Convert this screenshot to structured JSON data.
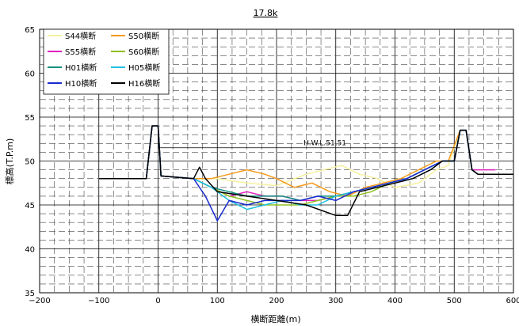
{
  "chart_data": {
    "type": "line",
    "title": "17.8k",
    "xlabel": "横断距離(m)",
    "ylabel": "標高(T.P.m)",
    "xlim": [
      -200,
      600
    ],
    "ylim": [
      35,
      65
    ],
    "x_ticks": [
      -200,
      -100,
      0,
      100,
      200,
      300,
      400,
      500,
      600
    ],
    "y_ticks": [
      35,
      40,
      45,
      50,
      55,
      60,
      65
    ],
    "x_tick_labels": [
      "−200",
      "−100",
      "0",
      "100",
      "200",
      "300",
      "400",
      "500",
      "600"
    ],
    "y_tick_labels": [
      "35",
      "40",
      "45",
      "50",
      "55",
      "60",
      "65"
    ],
    "grid": true,
    "legend_position": "top-left",
    "annotation": {
      "text": "H.W.L.51.51",
      "y": 51.51,
      "x_from": 0,
      "x_to": 510
    },
    "series": [
      {
        "name": "S44横断",
        "color": "#f5f0a0",
        "x": [
          -100,
          -20,
          -10,
          -5,
          0,
          5,
          60,
          100,
          150,
          200,
          250,
          280,
          310,
          340,
          370,
          400,
          440,
          470,
          490,
          510,
          520,
          530,
          540,
          560,
          600
        ],
        "y": [
          48,
          48,
          54,
          54,
          54,
          48.3,
          48,
          48,
          47.5,
          47.2,
          48.5,
          49,
          49.5,
          48.5,
          48,
          47,
          47.5,
          49,
          49.5,
          53.5,
          53.5,
          49,
          48.5,
          48.5,
          48.5
        ]
      },
      {
        "name": "S50横断",
        "color": "#f59a1a",
        "x": [
          -100,
          -20,
          -10,
          -5,
          0,
          5,
          60,
          90,
          120,
          150,
          180,
          200,
          230,
          260,
          290,
          320,
          350,
          380,
          410,
          440,
          470,
          490,
          510,
          520,
          530,
          540,
          560,
          600
        ],
        "y": [
          48,
          48,
          54,
          54,
          54,
          48.3,
          48,
          48,
          48.5,
          49,
          48.5,
          48,
          47,
          47.5,
          46.5,
          46,
          47,
          47.5,
          48,
          49,
          50,
          50,
          53.5,
          53.5,
          49,
          48.5,
          48.5,
          48.5
        ]
      },
      {
        "name": "S55横断",
        "color": "#e020c0",
        "x": [
          -100,
          -20,
          -10,
          -5,
          0,
          5,
          60,
          90,
          120,
          150,
          180,
          210,
          240,
          270,
          300,
          330,
          360,
          390,
          420,
          450,
          480,
          500,
          510,
          520,
          530,
          540,
          560,
          570
        ],
        "y": [
          48,
          48,
          54,
          54,
          54,
          48.3,
          48,
          47,
          46,
          46.5,
          46,
          46,
          45.5,
          45.5,
          46,
          46.5,
          47,
          47.5,
          48,
          49,
          50,
          50,
          53.5,
          53.5,
          49,
          49,
          49,
          49
        ]
      },
      {
        "name": "S60横断",
        "color": "#90c020",
        "x": [
          -100,
          -20,
          -10,
          -5,
          0,
          5,
          60,
          90,
          120,
          150,
          180,
          210,
          240,
          270,
          300,
          330,
          360,
          390,
          420,
          450,
          480,
          500,
          510,
          520,
          530,
          540,
          560,
          600
        ],
        "y": [
          48,
          48,
          54,
          54,
          54,
          48.3,
          48,
          47,
          46,
          45.5,
          45,
          45,
          45,
          45.5,
          46,
          46,
          46.5,
          47.5,
          48,
          49,
          50,
          50,
          53.5,
          53.5,
          49,
          48.5,
          48.5,
          48.5
        ]
      },
      {
        "name": "H01横断",
        "color": "#109080",
        "x": [
          -100,
          -20,
          -10,
          -5,
          0,
          5,
          60,
          90,
          120,
          150,
          180,
          210,
          240,
          270,
          300,
          330,
          360,
          390,
          420,
          450,
          480,
          500,
          510,
          520,
          530,
          540,
          560,
          600
        ],
        "y": [
          48,
          48,
          54,
          54,
          54,
          48.3,
          48,
          47,
          46.5,
          46,
          46,
          46,
          45.5,
          46,
          46,
          46.5,
          47,
          47.5,
          48,
          49,
          50,
          50,
          53.5,
          53.5,
          49,
          48.5,
          48.5,
          48.5
        ]
      },
      {
        "name": "H05横断",
        "color": "#20c0e0",
        "x": [
          -100,
          -20,
          -10,
          -5,
          0,
          5,
          60,
          90,
          120,
          150,
          180,
          210,
          240,
          270,
          300,
          330,
          360,
          390,
          420,
          450,
          480,
          500,
          510,
          520,
          530,
          540,
          560,
          600
        ],
        "y": [
          48,
          48,
          54,
          54,
          54,
          48.3,
          48,
          47,
          45.5,
          44.5,
          45,
          45.5,
          45,
          45,
          46,
          46.5,
          47,
          47.5,
          48,
          49,
          50,
          50,
          53.5,
          53.5,
          49,
          48.5,
          48.5,
          48.5
        ]
      },
      {
        "name": "H10横断",
        "color": "#1a2ad0",
        "x": [
          -100,
          -20,
          -10,
          -5,
          0,
          5,
          60,
          80,
          100,
          120,
          150,
          180,
          210,
          240,
          270,
          300,
          330,
          360,
          390,
          420,
          450,
          480,
          500,
          510,
          520,
          530,
          540,
          560,
          600
        ],
        "y": [
          48,
          48,
          54,
          54,
          54,
          48.3,
          48,
          46,
          43.2,
          45.5,
          45,
          45.5,
          45.5,
          45.5,
          46,
          45.5,
          46.5,
          47,
          47.5,
          48,
          49,
          50,
          50,
          53.5,
          53.5,
          49,
          48.5,
          48.5,
          48.5
        ]
      },
      {
        "name": "H16横断",
        "color": "#000000",
        "x": [
          -100,
          -20,
          -10,
          -5,
          0,
          5,
          60,
          70,
          80,
          100,
          150,
          200,
          250,
          300,
          320,
          340,
          370,
          400,
          430,
          460,
          480,
          500,
          510,
          520,
          530,
          540,
          560,
          600
        ],
        "y": [
          48,
          48,
          54,
          54,
          54,
          48.3,
          48,
          49.3,
          48,
          46.5,
          46,
          45.5,
          45,
          43.8,
          43.8,
          46.5,
          47,
          47.5,
          48,
          49,
          50,
          50,
          53.5,
          53.5,
          49,
          48.5,
          48.5,
          48.5
        ]
      }
    ]
  }
}
